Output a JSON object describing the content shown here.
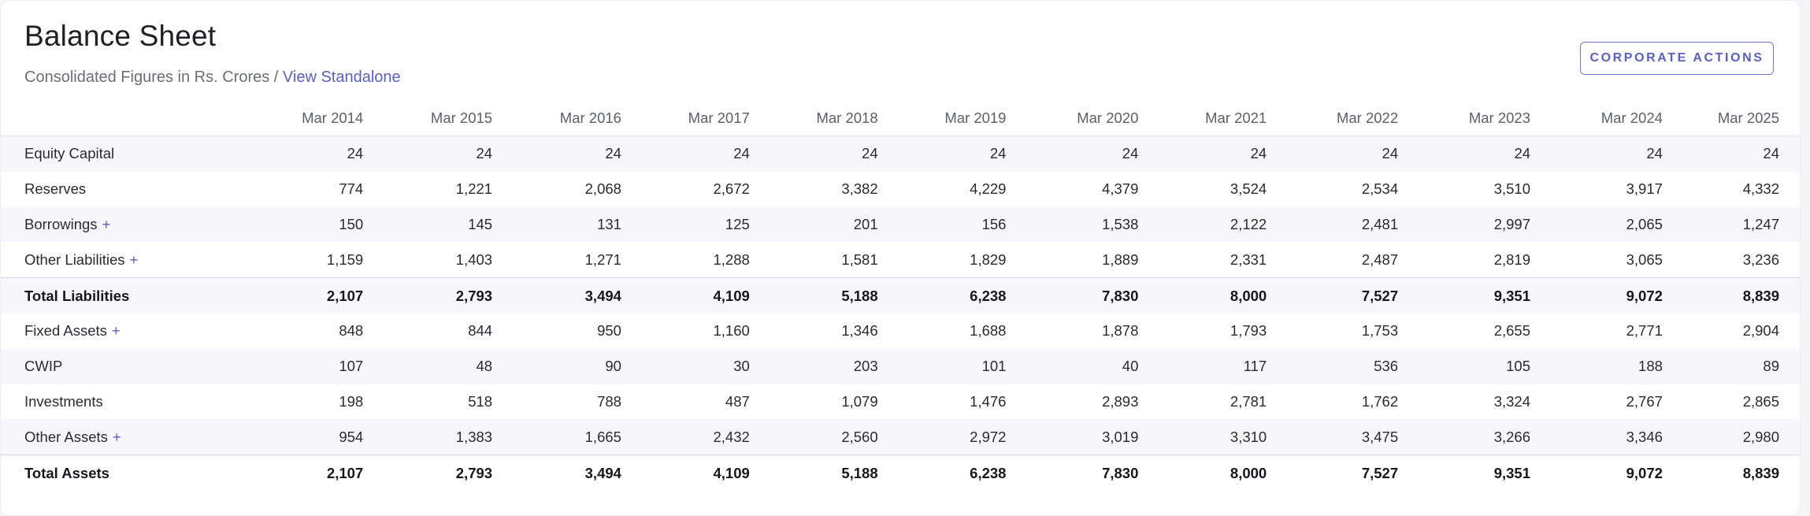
{
  "header": {
    "title": "Balance Sheet",
    "subtitle_prefix": "Consolidated Figures in Rs. Crores /",
    "subtitle_link": "View Standalone",
    "corporate_actions_label": "CORPORATE ACTIONS"
  },
  "colors": {
    "accent": "#5a5fc7",
    "stripe": "#f7f7fb"
  },
  "table": {
    "years": [
      "Mar 2014",
      "Mar 2015",
      "Mar 2016",
      "Mar 2017",
      "Mar 2018",
      "Mar 2019",
      "Mar 2020",
      "Mar 2021",
      "Mar 2022",
      "Mar 2023",
      "Mar 2024",
      "Mar 2025"
    ],
    "rows": [
      {
        "label": "Equity Capital",
        "expandable": false,
        "total": false,
        "values": [
          "24",
          "24",
          "24",
          "24",
          "24",
          "24",
          "24",
          "24",
          "24",
          "24",
          "24",
          "24"
        ]
      },
      {
        "label": "Reserves",
        "expandable": false,
        "total": false,
        "values": [
          "774",
          "1,221",
          "2,068",
          "2,672",
          "3,382",
          "4,229",
          "4,379",
          "3,524",
          "2,534",
          "3,510",
          "3,917",
          "4,332"
        ]
      },
      {
        "label": "Borrowings",
        "expandable": true,
        "total": false,
        "values": [
          "150",
          "145",
          "131",
          "125",
          "201",
          "156",
          "1,538",
          "2,122",
          "2,481",
          "2,997",
          "2,065",
          "1,247"
        ]
      },
      {
        "label": "Other Liabilities",
        "expandable": true,
        "total": false,
        "values": [
          "1,159",
          "1,403",
          "1,271",
          "1,288",
          "1,581",
          "1,829",
          "1,889",
          "2,331",
          "2,487",
          "2,819",
          "3,065",
          "3,236"
        ]
      },
      {
        "label": "Total Liabilities",
        "expandable": false,
        "total": true,
        "values": [
          "2,107",
          "2,793",
          "3,494",
          "4,109",
          "5,188",
          "6,238",
          "7,830",
          "8,000",
          "7,527",
          "9,351",
          "9,072",
          "8,839"
        ]
      },
      {
        "label": "Fixed Assets",
        "expandable": true,
        "total": false,
        "values": [
          "848",
          "844",
          "950",
          "1,160",
          "1,346",
          "1,688",
          "1,878",
          "1,793",
          "1,753",
          "2,655",
          "2,771",
          "2,904"
        ]
      },
      {
        "label": "CWIP",
        "expandable": false,
        "total": false,
        "values": [
          "107",
          "48",
          "90",
          "30",
          "203",
          "101",
          "40",
          "117",
          "536",
          "105",
          "188",
          "89"
        ]
      },
      {
        "label": "Investments",
        "expandable": false,
        "total": false,
        "values": [
          "198",
          "518",
          "788",
          "487",
          "1,079",
          "1,476",
          "2,893",
          "2,781",
          "1,762",
          "3,324",
          "2,767",
          "2,865"
        ]
      },
      {
        "label": "Other Assets",
        "expandable": true,
        "total": false,
        "values": [
          "954",
          "1,383",
          "1,665",
          "2,432",
          "2,560",
          "2,972",
          "3,019",
          "3,310",
          "3,475",
          "3,266",
          "3,346",
          "2,980"
        ]
      },
      {
        "label": "Total Assets",
        "expandable": false,
        "total": true,
        "values": [
          "2,107",
          "2,793",
          "3,494",
          "4,109",
          "5,188",
          "6,238",
          "7,830",
          "8,000",
          "7,527",
          "9,351",
          "9,072",
          "8,839"
        ]
      }
    ]
  }
}
